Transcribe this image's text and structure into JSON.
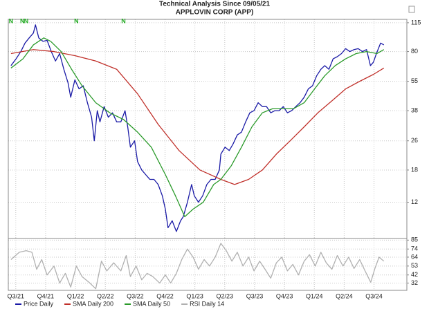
{
  "chart_data": [
    {
      "type": "line",
      "title": "Technical Analysis Since 09/05/21",
      "subtitle": "APPLOVIN CORP (APP)",
      "log_scale": true,
      "grid": true,
      "xlim": [
        -0.25,
        13.1
      ],
      "ylim": [
        7.6,
        120
      ],
      "yticks": [
        12,
        18,
        26,
        38,
        55,
        80,
        115
      ],
      "flags": [
        {
          "x": -0.16,
          "label": "N"
        },
        {
          "x": 0.22,
          "label": "N"
        },
        {
          "x": 0.35,
          "label": "N"
        },
        {
          "x": 2.03,
          "label": "N"
        },
        {
          "x": 3.61,
          "label": "N"
        }
      ],
      "series": [
        {
          "name": "Price Daily",
          "color": "#1a1aa6",
          "x": [
            -0.16,
            0.01,
            0.17,
            0.31,
            0.45,
            0.59,
            0.66,
            0.77,
            0.91,
            1.05,
            1.19,
            1.33,
            1.47,
            1.61,
            1.75,
            1.84,
            1.98,
            2.12,
            2.26,
            2.4,
            2.54,
            2.63,
            2.73,
            2.82,
            2.96,
            3.1,
            3.24,
            3.38,
            3.52,
            3.66,
            3.75,
            3.84,
            3.98,
            4.08,
            4.22,
            4.35,
            4.49,
            4.63,
            4.77,
            4.91,
            5.01,
            5.1,
            5.24,
            5.38,
            5.52,
            5.61,
            5.75,
            5.89,
            5.98,
            6.12,
            6.26,
            6.4,
            6.54,
            6.68,
            6.82,
            6.87,
            7.01,
            7.15,
            7.28,
            7.42,
            7.56,
            7.7,
            7.84,
            7.98,
            8.12,
            8.26,
            8.4,
            8.54,
            8.68,
            8.82,
            8.96,
            9.1,
            9.24,
            9.38,
            9.52,
            9.66,
            9.8,
            9.94,
            10.08,
            10.22,
            10.35,
            10.49,
            10.63,
            10.77,
            10.91,
            11.05,
            11.19,
            11.33,
            11.47,
            11.61,
            11.75,
            11.88,
            11.98,
            12.08,
            12.22,
            12.33
          ],
          "values": [
            67,
            73,
            80,
            89,
            95,
            101,
            112,
            95,
            91,
            92,
            80,
            71,
            78,
            64,
            54,
            45,
            56,
            50,
            52,
            42,
            35,
            26,
            38,
            33,
            40,
            35,
            37,
            33,
            33,
            38,
            31,
            24,
            26,
            20,
            18,
            17,
            16,
            16,
            15,
            13,
            11,
            8.7,
            9.5,
            8.3,
            9.5,
            10,
            12,
            15,
            13,
            12,
            13,
            15,
            16,
            16,
            18,
            22,
            24,
            23,
            25,
            28,
            29,
            33,
            37,
            38,
            42,
            40,
            40,
            37,
            38,
            38,
            40,
            37,
            38,
            40,
            42,
            45,
            50,
            52,
            59,
            64,
            67,
            64,
            73,
            75,
            78,
            83,
            80,
            82,
            83,
            80,
            82,
            67,
            70,
            78,
            89,
            87
          ]
        },
        {
          "name": "SMA Daily 200",
          "color": "#c0302a",
          "x": [
            -0.16,
            0.59,
            1.28,
            1.98,
            2.68,
            3.38,
            4.08,
            4.77,
            5.47,
            6.17,
            6.87,
            7.33,
            7.8,
            8.26,
            8.73,
            9.19,
            9.66,
            10.12,
            10.59,
            11.05,
            11.52,
            11.98,
            12.33
          ],
          "values": [
            78,
            82,
            80,
            76,
            71,
            64,
            47,
            32,
            23,
            18,
            16,
            15,
            16,
            18,
            22,
            26,
            31,
            37,
            43,
            50,
            55,
            60,
            65
          ]
        },
        {
          "name": "SMA Daily 50",
          "color": "#2a9a2a",
          "x": [
            -0.16,
            0.24,
            0.59,
            0.94,
            1.17,
            1.52,
            1.87,
            2.22,
            2.68,
            3.15,
            3.61,
            4.08,
            4.54,
            5.01,
            5.35,
            5.66,
            5.94,
            6.28,
            6.63,
            6.87,
            7.22,
            7.56,
            7.91,
            8.26,
            8.61,
            8.96,
            9.31,
            9.66,
            10.01,
            10.35,
            10.7,
            11.05,
            11.4,
            11.75,
            12.1,
            12.33
          ],
          "values": [
            65,
            73,
            87,
            95,
            91,
            80,
            64,
            52,
            42,
            37,
            34,
            29,
            24,
            17,
            13,
            10,
            11,
            12,
            15,
            16,
            19,
            24,
            31,
            37,
            39,
            39,
            39,
            42,
            50,
            59,
            67,
            73,
            78,
            80,
            78,
            82
          ]
        }
      ]
    },
    {
      "type": "line",
      "grid": true,
      "xlim": [
        -0.25,
        13.1
      ],
      "xticks": [
        {
          "value": 0,
          "label": "Q3/21"
        },
        {
          "value": 1,
          "label": "Q4/21"
        },
        {
          "value": 2,
          "label": "Q1/22"
        },
        {
          "value": 3,
          "label": "Q2/22"
        },
        {
          "value": 4,
          "label": "Q3/22"
        },
        {
          "value": 5,
          "label": "Q4/22"
        },
        {
          "value": 6,
          "label": "Q1/23"
        },
        {
          "value": 7,
          "label": "Q2/23"
        },
        {
          "value": 8,
          "label": "Q3/23"
        },
        {
          "value": 9,
          "label": "Q4/23"
        },
        {
          "value": 10,
          "label": "Q1/24"
        },
        {
          "value": 11,
          "label": "Q2/24"
        },
        {
          "value": 12,
          "label": "Q3/24"
        }
      ],
      "ylim": [
        23,
        87
      ],
      "yticks": [
        32,
        42,
        53,
        64,
        74,
        85
      ],
      "series": [
        {
          "name": "RSI Daily 14",
          "color": "#b0b0b0",
          "x": [
            -0.16,
            0.12,
            0.35,
            0.54,
            0.7,
            0.87,
            1.05,
            1.28,
            1.47,
            1.66,
            1.84,
            2.03,
            2.22,
            2.45,
            2.68,
            2.87,
            3.05,
            3.28,
            3.52,
            3.7,
            3.84,
            4.03,
            4.22,
            4.4,
            4.59,
            4.82,
            5.01,
            5.19,
            5.38,
            5.56,
            5.75,
            5.94,
            6.12,
            6.31,
            6.49,
            6.68,
            6.87,
            7.05,
            7.24,
            7.42,
            7.61,
            7.8,
            7.98,
            8.17,
            8.35,
            8.54,
            8.73,
            8.91,
            9.1,
            9.28,
            9.47,
            9.66,
            9.84,
            10.03,
            10.22,
            10.4,
            10.59,
            10.77,
            10.96,
            11.15,
            11.33,
            11.52,
            11.7,
            11.89,
            12.03,
            12.17,
            12.33
          ],
          "values": [
            61,
            70,
            72,
            70,
            49,
            61,
            42,
            53,
            32,
            44,
            27,
            53,
            40,
            33,
            25,
            59,
            47,
            57,
            47,
            66,
            40,
            53,
            36,
            44,
            40,
            32,
            42,
            32,
            44,
            61,
            74,
            64,
            49,
            61,
            53,
            64,
            81,
            72,
            59,
            70,
            53,
            64,
            47,
            59,
            49,
            38,
            57,
            64,
            47,
            55,
            42,
            59,
            67,
            53,
            70,
            57,
            49,
            66,
            53,
            64,
            50,
            61,
            47,
            33,
            50,
            64,
            59
          ]
        }
      ]
    }
  ]
}
